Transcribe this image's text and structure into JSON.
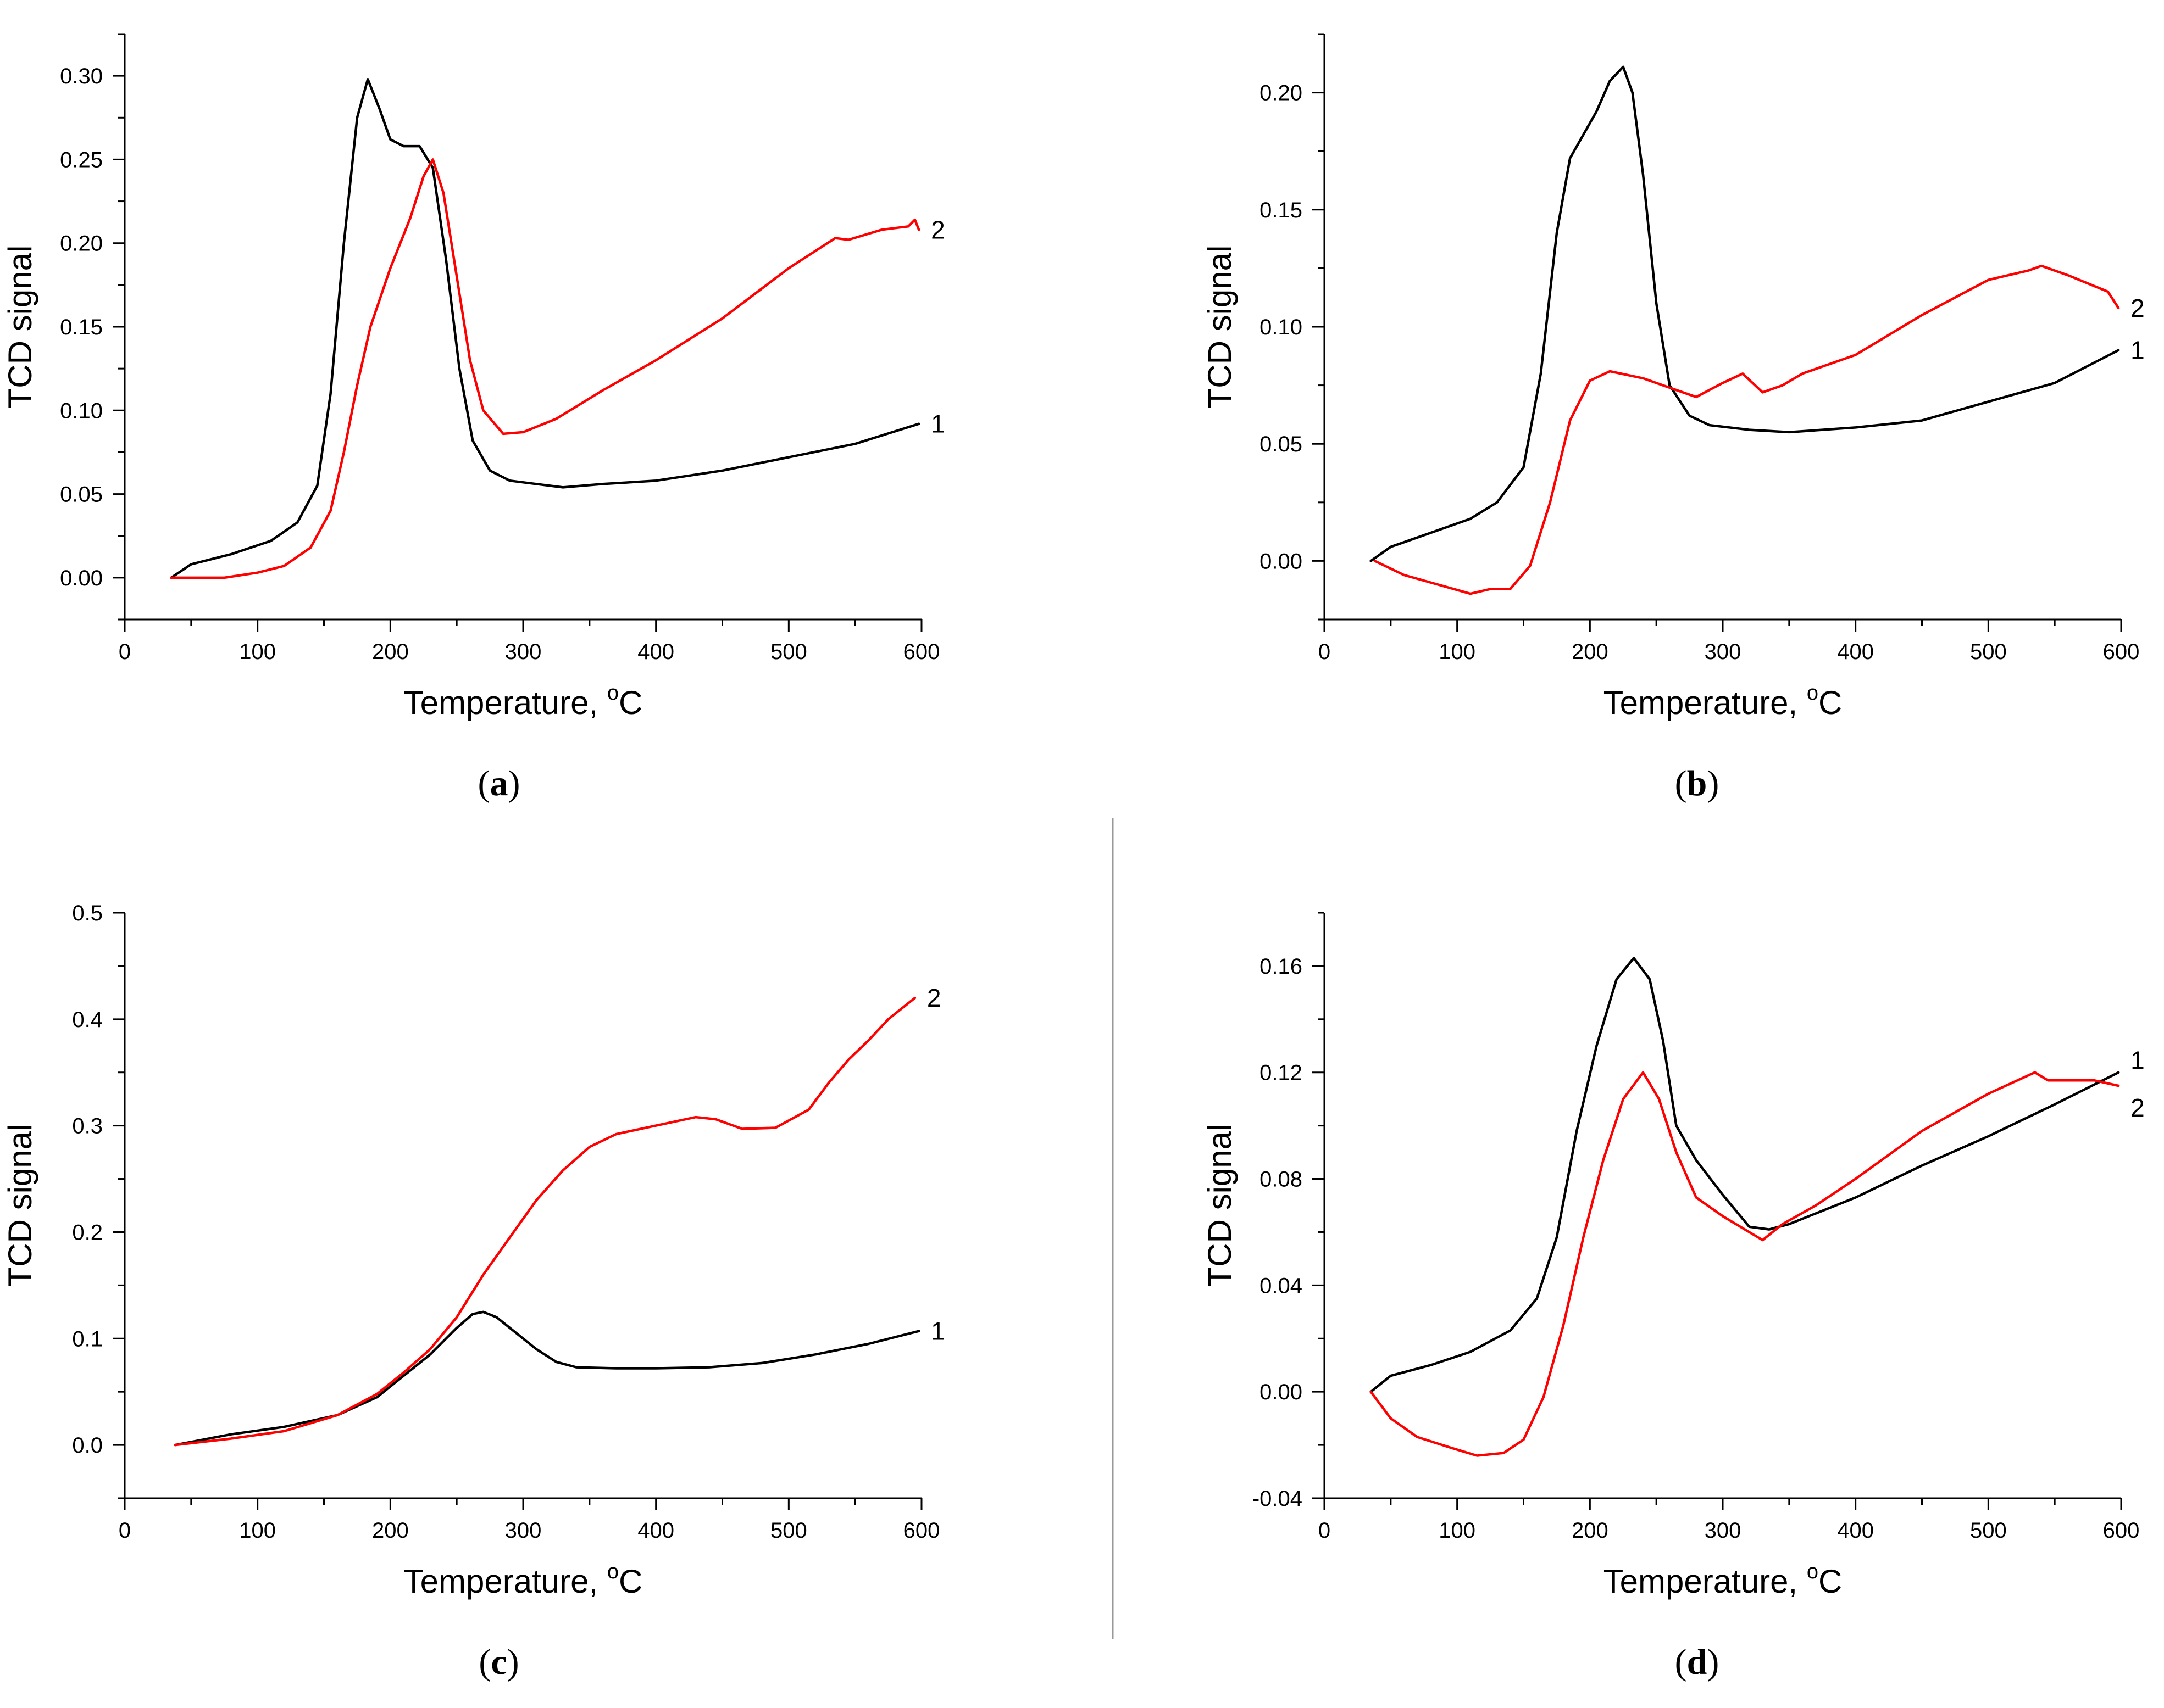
{
  "colors": {
    "series1": "#000000",
    "series2": "#ff0000",
    "divider": "#999999"
  },
  "chart_data": [
    {
      "type": "line",
      "caption_letter": "a",
      "xlabel": "Temperature, ",
      "xlabel_unit": "C",
      "xlabel_sup": "o",
      "ylabel": "TCD signal",
      "xlim": [
        0,
        600
      ],
      "ylim": [
        -0.025,
        0.325
      ],
      "xticks": [
        0,
        100,
        200,
        300,
        400,
        500,
        600
      ],
      "xtick_labels": [
        "0",
        "100",
        "200",
        "300",
        "400",
        "500",
        "600"
      ],
      "yticks": [
        0,
        0.05,
        0.1,
        0.15,
        0.2,
        0.25,
        0.3
      ],
      "ytick_labels": [
        "0.00",
        "0.05",
        "0.10",
        "0.15",
        "0.20",
        "0.25",
        "0.30"
      ],
      "series": [
        {
          "name": "1",
          "color": "#000000",
          "x": [
            35,
            50,
            80,
            110,
            130,
            145,
            155,
            165,
            175,
            183,
            192,
            200,
            210,
            222,
            232,
            242,
            252,
            262,
            275,
            290,
            310,
            330,
            360,
            400,
            450,
            500,
            550,
            598
          ],
          "y": [
            0.0,
            0.008,
            0.014,
            0.022,
            0.033,
            0.055,
            0.11,
            0.2,
            0.275,
            0.298,
            0.28,
            0.262,
            0.258,
            0.258,
            0.245,
            0.19,
            0.125,
            0.082,
            0.064,
            0.058,
            0.056,
            0.054,
            0.056,
            0.058,
            0.064,
            0.072,
            0.08,
            0.092
          ]
        },
        {
          "name": "2",
          "color": "#ff0000",
          "x": [
            35,
            55,
            75,
            100,
            120,
            140,
            155,
            165,
            175,
            185,
            200,
            215,
            225,
            232,
            240,
            250,
            260,
            270,
            285,
            300,
            325,
            360,
            400,
            450,
            500,
            535,
            545,
            570,
            590,
            595,
            598
          ],
          "y": [
            0.0,
            0.0,
            0.0,
            0.003,
            0.007,
            0.018,
            0.04,
            0.075,
            0.115,
            0.15,
            0.185,
            0.215,
            0.24,
            0.25,
            0.23,
            0.18,
            0.13,
            0.1,
            0.086,
            0.087,
            0.095,
            0.112,
            0.13,
            0.155,
            0.185,
            0.203,
            0.202,
            0.208,
            0.21,
            0.214,
            0.208
          ]
        }
      ]
    },
    {
      "type": "line",
      "caption_letter": "b",
      "xlabel": "Temperature, ",
      "xlabel_unit": "C",
      "xlabel_sup": "o",
      "ylabel": "TCD signal",
      "xlim": [
        0,
        600
      ],
      "ylim": [
        -0.025,
        0.225
      ],
      "xticks": [
        0,
        100,
        200,
        300,
        400,
        500,
        600
      ],
      "xtick_labels": [
        "0",
        "100",
        "200",
        "300",
        "400",
        "500",
        "600"
      ],
      "yticks": [
        0,
        0.05,
        0.1,
        0.15,
        0.2
      ],
      "ytick_labels": [
        "0.00",
        "0.05",
        "0.10",
        "0.15",
        "0.20"
      ],
      "series": [
        {
          "name": "1",
          "color": "#000000",
          "x": [
            35,
            50,
            80,
            110,
            130,
            150,
            163,
            175,
            185,
            195,
            205,
            215,
            225,
            232,
            240,
            250,
            260,
            275,
            290,
            320,
            350,
            400,
            450,
            500,
            550,
            598
          ],
          "y": [
            0.0,
            0.006,
            0.012,
            0.018,
            0.025,
            0.04,
            0.08,
            0.14,
            0.172,
            0.182,
            0.192,
            0.205,
            0.211,
            0.2,
            0.165,
            0.11,
            0.075,
            0.062,
            0.058,
            0.056,
            0.055,
            0.057,
            0.06,
            0.068,
            0.076,
            0.09
          ]
        },
        {
          "name": "2",
          "color": "#ff0000",
          "x": [
            38,
            60,
            85,
            110,
            125,
            140,
            155,
            170,
            185,
            200,
            215,
            240,
            260,
            280,
            300,
            315,
            330,
            345,
            360,
            400,
            450,
            500,
            530,
            540,
            560,
            590,
            598
          ],
          "y": [
            0.0,
            -0.006,
            -0.01,
            -0.014,
            -0.012,
            -0.012,
            -0.002,
            0.025,
            0.06,
            0.077,
            0.081,
            0.078,
            0.074,
            0.07,
            0.076,
            0.08,
            0.072,
            0.075,
            0.08,
            0.088,
            0.105,
            0.12,
            0.124,
            0.126,
            0.122,
            0.115,
            0.108
          ]
        }
      ]
    },
    {
      "type": "line",
      "caption_letter": "c",
      "xlabel": "Temperature, ",
      "xlabel_unit": "C",
      "xlabel_sup": "o",
      "ylabel": "TCD signal",
      "xlim": [
        0,
        600
      ],
      "ylim": [
        -0.05,
        0.5
      ],
      "xticks": [
        0,
        100,
        200,
        300,
        400,
        500,
        600
      ],
      "xtick_labels": [
        "0",
        "100",
        "200",
        "300",
        "400",
        "500",
        "600"
      ],
      "yticks": [
        0,
        0.1,
        0.2,
        0.3,
        0.4,
        0.5
      ],
      "ytick_labels": [
        "0.0",
        "0.1",
        "0.2",
        "0.3",
        "0.4",
        "0.5"
      ],
      "series": [
        {
          "name": "1",
          "color": "#000000",
          "x": [
            38,
            80,
            120,
            160,
            190,
            210,
            230,
            250,
            262,
            270,
            280,
            295,
            310,
            325,
            340,
            370,
            400,
            440,
            480,
            520,
            560,
            598
          ],
          "y": [
            0.0,
            0.01,
            0.017,
            0.028,
            0.045,
            0.065,
            0.085,
            0.11,
            0.123,
            0.125,
            0.12,
            0.105,
            0.09,
            0.078,
            0.073,
            0.072,
            0.072,
            0.073,
            0.077,
            0.085,
            0.095,
            0.107
          ]
        },
        {
          "name": "2",
          "color": "#ff0000",
          "x": [
            38,
            80,
            120,
            160,
            190,
            210,
            230,
            250,
            270,
            290,
            310,
            330,
            350,
            370,
            400,
            430,
            445,
            465,
            490,
            515,
            530,
            545,
            560,
            575,
            595
          ],
          "y": [
            0.0,
            0.006,
            0.013,
            0.028,
            0.048,
            0.068,
            0.09,
            0.12,
            0.16,
            0.195,
            0.23,
            0.258,
            0.28,
            0.292,
            0.3,
            0.308,
            0.306,
            0.297,
            0.298,
            0.315,
            0.34,
            0.362,
            0.38,
            0.4,
            0.42
          ]
        }
      ]
    },
    {
      "type": "line",
      "caption_letter": "d",
      "xlabel": "Temperature, ",
      "xlabel_unit": "C",
      "xlabel_sup": "o",
      "ylabel": "TCD signal",
      "xlim": [
        0,
        600
      ],
      "ylim": [
        -0.04,
        0.18
      ],
      "xticks": [
        0,
        100,
        200,
        300,
        400,
        500,
        600
      ],
      "xtick_labels": [
        "0",
        "100",
        "200",
        "300",
        "400",
        "500",
        "600"
      ],
      "yticks": [
        -0.04,
        0,
        0.04,
        0.08,
        0.12,
        0.16
      ],
      "ytick_labels": [
        "-0.04",
        "0.00",
        "0.04",
        "0.08",
        "0.12",
        "0.16"
      ],
      "series": [
        {
          "name": "1",
          "color": "#000000",
          "x": [
            35,
            50,
            80,
            110,
            140,
            160,
            175,
            190,
            205,
            220,
            233,
            245,
            255,
            265,
            280,
            300,
            320,
            335,
            350,
            400,
            450,
            500,
            550,
            598
          ],
          "y": [
            0.0,
            0.006,
            0.01,
            0.015,
            0.023,
            0.035,
            0.058,
            0.098,
            0.13,
            0.155,
            0.163,
            0.155,
            0.132,
            0.1,
            0.087,
            0.074,
            0.062,
            0.061,
            0.063,
            0.073,
            0.085,
            0.096,
            0.108,
            0.12
          ]
        },
        {
          "name": "2",
          "color": "#ff0000",
          "x": [
            35,
            50,
            70,
            95,
            115,
            135,
            150,
            165,
            180,
            195,
            210,
            225,
            240,
            252,
            265,
            280,
            300,
            320,
            330,
            345,
            370,
            400,
            450,
            500,
            535,
            545,
            580,
            598
          ],
          "y": [
            0.0,
            -0.01,
            -0.017,
            -0.021,
            -0.024,
            -0.023,
            -0.018,
            -0.002,
            0.025,
            0.058,
            0.087,
            0.11,
            0.12,
            0.11,
            0.09,
            0.073,
            0.066,
            0.06,
            0.057,
            0.063,
            0.07,
            0.08,
            0.098,
            0.112,
            0.12,
            0.117,
            0.117,
            0.115
          ]
        }
      ]
    }
  ]
}
